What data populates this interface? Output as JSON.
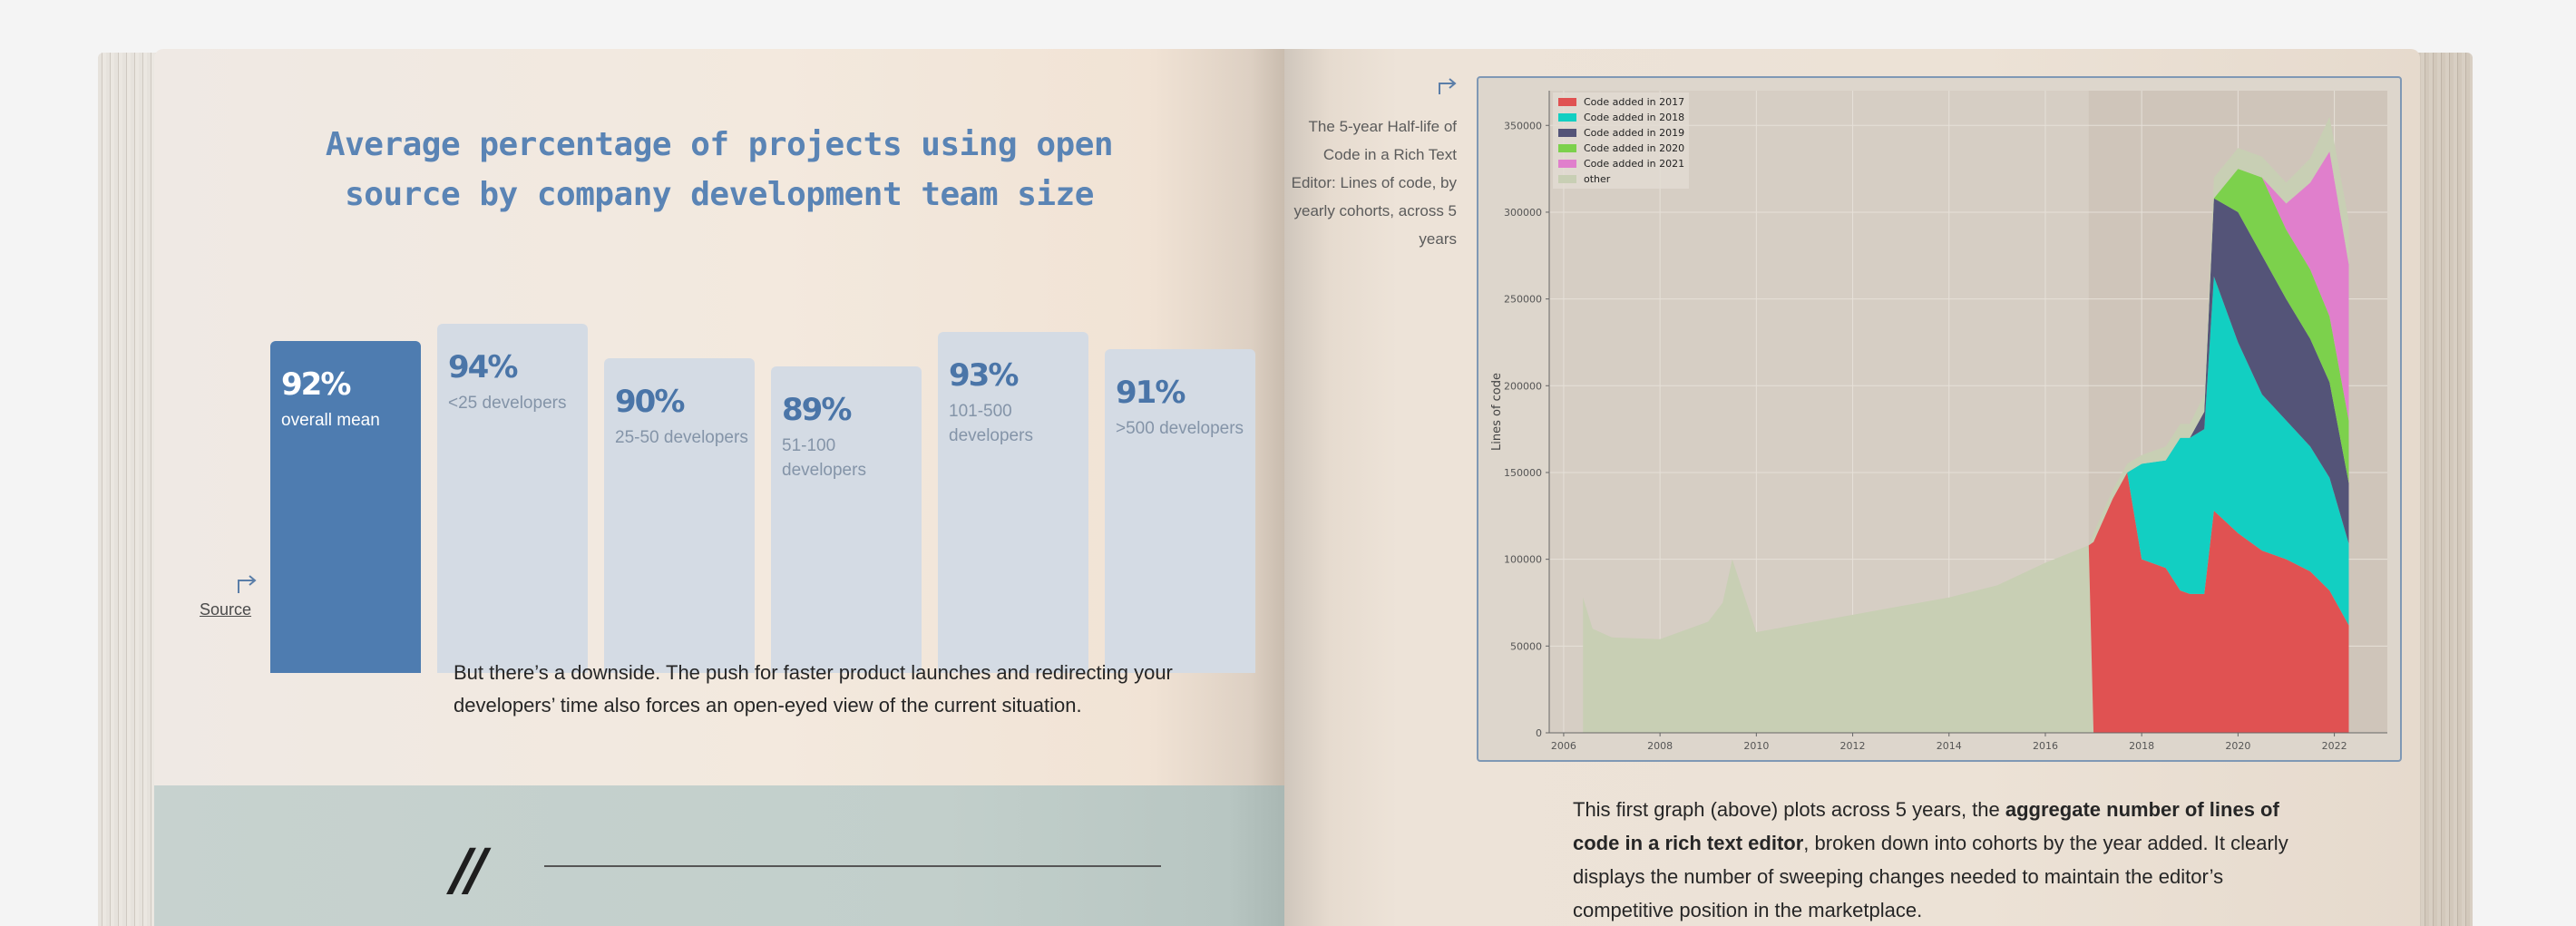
{
  "left_page": {
    "title_line1": "Average percentage of projects using open",
    "title_line2": "source by company development team size",
    "bars": [
      {
        "value": "92%",
        "label": "overall mean",
        "fraction": 0.92
      },
      {
        "value": "94%",
        "label": "<25 developers",
        "fraction": 0.94
      },
      {
        "value": "90%",
        "label": "25-50 developers",
        "fraction": 0.9
      },
      {
        "value": "89%",
        "label": "51-100 developers",
        "fraction": 0.89
      },
      {
        "value": "93%",
        "label": "101-500 developers",
        "fraction": 0.93
      },
      {
        "value": "91%",
        "label": ">500 developers",
        "fraction": 0.91
      }
    ],
    "source_label": "Source",
    "body_text": "But there’s a downside. The push for faster product launches and redirecting your developers’ time also forces an open-eyed view of the current situation.",
    "quote_mark": "//"
  },
  "right_page": {
    "caption": "The 5-year Half-life of Code in a Rich Text Editor: Lines of code, by yearly cohorts, across 5 years",
    "body_pre": "This first graph (above) plots across 5 years, the ",
    "body_bold": "aggregate number of lines of code in a rich text editor",
    "body_post": ", broken down into cohorts by the year added. It clearly displays the number of sweeping changes needed to maintain the editor’s competitive position in the marketplace."
  },
  "colors": {
    "accent_blue": "#4e7cb0",
    "title_blue": "#5a84b5",
    "bar_inactive": "#d4dbe4",
    "series": {
      "other": "#c8cfb4",
      "2017": "#e05252",
      "2018": "#12cfc2",
      "2019": "#545478",
      "2020": "#7cd14c",
      "2021": "#e07fcc"
    }
  },
  "chart_data": {
    "type": "area",
    "stacked": true,
    "title": "",
    "xlabel": "",
    "ylabel": "Lines of code",
    "xlim": [
      2005.7,
      2023.1
    ],
    "ylim": [
      0,
      370000
    ],
    "xticks": [
      2006,
      2008,
      2010,
      2012,
      2014,
      2016,
      2018,
      2020,
      2022
    ],
    "yticks": [
      0,
      50000,
      100000,
      150000,
      200000,
      250000,
      300000,
      350000
    ],
    "grid": true,
    "legend_position": "top-left",
    "x": [
      2006.4,
      2006.6,
      2007.0,
      2008.0,
      2009.0,
      2009.3,
      2009.5,
      2010.0,
      2011.0,
      2012.0,
      2013.0,
      2014.0,
      2015.0,
      2016.0,
      2016.9,
      2017.0,
      2017.4,
      2017.7,
      2018.0,
      2018.5,
      2018.8,
      2019.0,
      2019.3,
      2019.5,
      2020.0,
      2020.5,
      2021.0,
      2021.5,
      2021.9,
      2022.3
    ],
    "series": [
      {
        "name": "other",
        "values": [
          78000,
          60000,
          55000,
          54000,
          64000,
          75000,
          100000,
          58000,
          63000,
          68000,
          73000,
          78000,
          85000,
          98000,
          108000,
          0,
          0,
          0,
          0,
          0,
          0,
          0,
          0,
          0,
          0,
          0,
          0,
          0,
          0,
          0
        ]
      },
      {
        "name": "Code added in 2017",
        "values": [
          0,
          0,
          0,
          0,
          0,
          0,
          0,
          0,
          0,
          0,
          0,
          0,
          0,
          0,
          0,
          110000,
          135000,
          150000,
          100000,
          95000,
          82000,
          80000,
          80000,
          128000,
          115000,
          105000,
          100000,
          93000,
          82000,
          62000
        ]
      },
      {
        "name": "Code added in 2018",
        "values": [
          0,
          0,
          0,
          0,
          0,
          0,
          0,
          0,
          0,
          0,
          0,
          0,
          0,
          0,
          0,
          0,
          0,
          0,
          55000,
          62000,
          88000,
          90000,
          95000,
          135000,
          110000,
          90000,
          80000,
          72000,
          65000,
          47000
        ]
      },
      {
        "name": "Code added in 2019",
        "values": [
          0,
          0,
          0,
          0,
          0,
          0,
          0,
          0,
          0,
          0,
          0,
          0,
          0,
          0,
          0,
          0,
          0,
          0,
          0,
          0,
          0,
          0,
          10000,
          45000,
          75000,
          80000,
          70000,
          62000,
          55000,
          35000
        ]
      },
      {
        "name": "Code added in 2020",
        "values": [
          0,
          0,
          0,
          0,
          0,
          0,
          0,
          0,
          0,
          0,
          0,
          0,
          0,
          0,
          0,
          0,
          0,
          0,
          0,
          0,
          0,
          0,
          0,
          0,
          25000,
          45000,
          40000,
          40000,
          38000,
          36000
        ]
      },
      {
        "name": "Code added in 2021",
        "values": [
          0,
          0,
          0,
          0,
          0,
          0,
          0,
          0,
          0,
          0,
          0,
          0,
          0,
          0,
          0,
          0,
          0,
          0,
          0,
          0,
          0,
          0,
          0,
          0,
          0,
          0,
          15000,
          50000,
          95000,
          90000
        ]
      },
      {
        "name": "other",
        "values": [
          0,
          0,
          0,
          0,
          0,
          0,
          0,
          0,
          0,
          0,
          0,
          0,
          0,
          0,
          0,
          5000,
          5000,
          5000,
          5000,
          8000,
          8000,
          8000,
          10000,
          12000,
          12000,
          12000,
          12000,
          14000,
          20000,
          25000
        ]
      }
    ]
  }
}
